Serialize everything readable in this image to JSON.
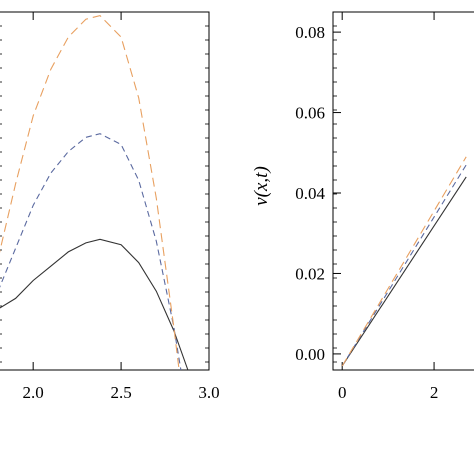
{
  "chart_data": [
    {
      "type": "line",
      "title": "",
      "xlabel": "",
      "ylabel": "",
      "xlim": [
        1.8,
        3.0
      ],
      "ylim": [
        0,
        1
      ],
      "x_ticks": [
        "2.0",
        "2.5",
        "3.0"
      ],
      "y_ticks": [],
      "series": [
        {
          "style": "solid",
          "color": "#333333",
          "points": [
            [
              1.8,
              0.17
            ],
            [
              1.9,
              0.2
            ],
            [
              2.0,
              0.25
            ],
            [
              2.1,
              0.29
            ],
            [
              2.2,
              0.33
            ],
            [
              2.3,
              0.355
            ],
            [
              2.38,
              0.365
            ],
            [
              2.5,
              0.35
            ],
            [
              2.6,
              0.3
            ],
            [
              2.7,
              0.22
            ],
            [
              2.8,
              0.11
            ],
            [
              2.88,
              0.0
            ]
          ]
        },
        {
          "style": "dashed",
          "color": "#5b6aa0",
          "points": [
            [
              1.8,
              0.22
            ],
            [
              1.9,
              0.34
            ],
            [
              2.0,
              0.46
            ],
            [
              2.1,
              0.55
            ],
            [
              2.2,
              0.61
            ],
            [
              2.3,
              0.65
            ],
            [
              2.38,
              0.66
            ],
            [
              2.5,
              0.63
            ],
            [
              2.6,
              0.53
            ],
            [
              2.7,
              0.36
            ],
            [
              2.8,
              0.12
            ],
            [
              2.84,
              0.0
            ]
          ]
        },
        {
          "style": "dashed",
          "color": "#e8a060",
          "points": [
            [
              1.8,
              0.31
            ],
            [
              1.9,
              0.52
            ],
            [
              2.0,
              0.71
            ],
            [
              2.1,
              0.84
            ],
            [
              2.2,
              0.93
            ],
            [
              2.3,
              0.98
            ],
            [
              2.38,
              0.99
            ],
            [
              2.5,
              0.93
            ],
            [
              2.6,
              0.76
            ],
            [
              2.7,
              0.48
            ],
            [
              2.8,
              0.12
            ],
            [
              2.83,
              0.0
            ]
          ]
        }
      ]
    },
    {
      "type": "line",
      "title": "",
      "xlabel": "",
      "ylabel": "v(x,t)",
      "xlim": [
        -0.2,
        3.0
      ],
      "ylim": [
        -0.004,
        0.085
      ],
      "x_ticks": [
        "0",
        "2"
      ],
      "y_ticks": [
        "0.00",
        "0.02",
        "0.04",
        "0.06",
        "0.08"
      ],
      "series": [
        {
          "style": "solid",
          "color": "#333333",
          "points": [
            [
              0,
              -0.003
            ],
            [
              2.7,
              0.044
            ]
          ]
        },
        {
          "style": "dashed",
          "color": "#5b6aa0",
          "points": [
            [
              0,
              -0.003
            ],
            [
              2.7,
              0.047
            ]
          ]
        },
        {
          "style": "dashed",
          "color": "#e8a060",
          "points": [
            [
              0,
              -0.003
            ],
            [
              2.7,
              0.049
            ]
          ]
        }
      ]
    }
  ]
}
